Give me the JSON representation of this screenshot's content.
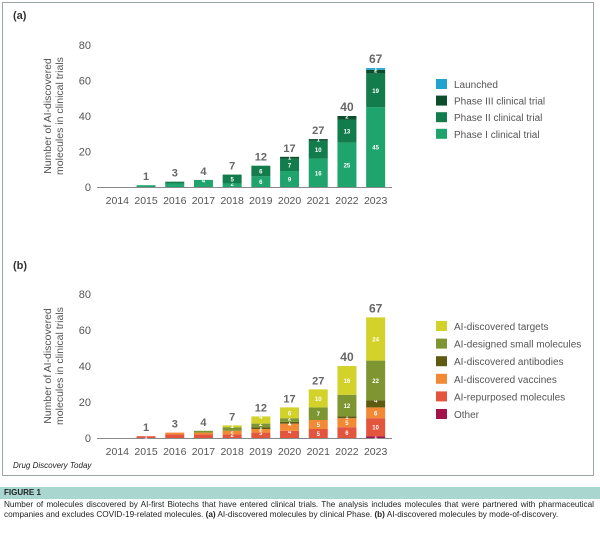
{
  "figure": {
    "label": "FIGURE 1",
    "source": "Drug Discovery Today",
    "caption_parts": [
      {
        "text": "Number of molecules discovered by AI-first Biotechs that have entered clinical trials. The analysis includes molecules that were partnered with pharmaceutical companies and excludes COVID-19-related molecules. ",
        "bold": false
      },
      {
        "text": "(a)",
        "bold": true
      },
      {
        "text": " AI-discovered molecules by clinical Phase. ",
        "bold": false
      },
      {
        "text": "(b)",
        "bold": true
      },
      {
        "text": " AI-discovered molecules by mode-of-discovery.",
        "bold": false
      }
    ]
  },
  "chart_data": [
    {
      "panel": "(a)",
      "type": "bar",
      "stacked": true,
      "ylabel": "Number of AI-discovered molecules in clinical trials",
      "xlabel": "",
      "ylim": [
        0,
        80
      ],
      "yticks": [
        0,
        20,
        40,
        60,
        80
      ],
      "grid": false,
      "legend_position": "right",
      "categories": [
        "2014",
        "2015",
        "2016",
        "2017",
        "2018",
        "2019",
        "2020",
        "2021",
        "2022",
        "2023"
      ],
      "totals": [
        null,
        1,
        3,
        4,
        7,
        12,
        17,
        27,
        40,
        67
      ],
      "series": [
        {
          "name": "Phase I clinical trial",
          "color": "#1fa46e",
          "values": [
            0,
            1,
            2,
            4,
            2,
            6,
            9,
            16,
            25,
            45
          ],
          "labels": [
            "",
            "",
            "",
            "4",
            "2",
            "6",
            "9",
            "16",
            "25",
            "45"
          ]
        },
        {
          "name": "Phase II clinical trial",
          "color": "#137c4c",
          "values": [
            0,
            0,
            1,
            0,
            5,
            6,
            7,
            10,
            13,
            19
          ],
          "labels": [
            "",
            "",
            "",
            "",
            "5",
            "6",
            "7",
            "10",
            "13",
            "19"
          ]
        },
        {
          "name": "Phase III clinical trial",
          "color": "#0b4d2d",
          "values": [
            0,
            0,
            0,
            0,
            0,
            0,
            1,
            1,
            2,
            2
          ],
          "labels": [
            "",
            "",
            "",
            "",
            "",
            "",
            "1",
            "1",
            "2",
            "2"
          ]
        },
        {
          "name": "Launched",
          "color": "#21a2cf",
          "values": [
            0,
            0,
            0,
            0,
            0,
            0,
            0,
            0,
            0,
            1
          ],
          "labels": [
            "",
            "",
            "",
            "",
            "",
            "",
            "",
            "",
            "",
            "1"
          ]
        }
      ]
    },
    {
      "panel": "(b)",
      "type": "bar",
      "stacked": true,
      "ylabel": "Number of AI-discovered molecules in clinical trials",
      "xlabel": "",
      "ylim": [
        0,
        80
      ],
      "yticks": [
        0,
        20,
        40,
        60,
        80
      ],
      "grid": false,
      "legend_position": "right",
      "categories": [
        "2014",
        "2015",
        "2016",
        "2017",
        "2018",
        "2019",
        "2020",
        "2021",
        "2022",
        "2023"
      ],
      "totals": [
        null,
        1,
        3,
        4,
        7,
        12,
        17,
        27,
        40,
        67
      ],
      "series": [
        {
          "name": "Other",
          "color": "#a3124a",
          "values": [
            0,
            0,
            0,
            0,
            0,
            0,
            0,
            0,
            0,
            1
          ],
          "labels": [
            "",
            "",
            "",
            "",
            "",
            "",
            "",
            "",
            "",
            "1"
          ]
        },
        {
          "name": "AI-repurposed molecules",
          "color": "#e4553e",
          "values": [
            0,
            1,
            2,
            2,
            2,
            3,
            4,
            5,
            6,
            10
          ],
          "labels": [
            "",
            "1",
            "",
            "",
            "2",
            "3",
            "4",
            "5",
            "6",
            "10"
          ]
        },
        {
          "name": "AI-discovered vaccines",
          "color": "#f28a35",
          "values": [
            0,
            0,
            1,
            1,
            2,
            2,
            4,
            5,
            5,
            6
          ],
          "labels": [
            "",
            "",
            "",
            "",
            "2",
            "2",
            "4",
            "5",
            "5",
            "6"
          ]
        },
        {
          "name": "AI-discovered antibodies",
          "color": "#5d5a12",
          "values": [
            0,
            0,
            0,
            0,
            0,
            1,
            1,
            0,
            1,
            4
          ],
          "labels": [
            "",
            "",
            "",
            "",
            "",
            "1",
            "1",
            "",
            "1",
            "4"
          ]
        },
        {
          "name": "AI-designed small molecules",
          "color": "#7e9632",
          "values": [
            0,
            0,
            0,
            1,
            2,
            2,
            2,
            7,
            12,
            22
          ],
          "labels": [
            "",
            "",
            "",
            "",
            "",
            "2",
            "2",
            "7",
            "12",
            "22"
          ]
        },
        {
          "name": "AI-discovered targets",
          "color": "#d2d22a",
          "values": [
            0,
            0,
            0,
            0,
            1,
            4,
            6,
            10,
            16,
            24
          ],
          "labels": [
            "",
            "",
            "",
            "",
            "1",
            "4",
            "6",
            "10",
            "16",
            "24"
          ]
        }
      ],
      "legend_order": [
        "AI-discovered targets",
        "AI-designed small molecules",
        "AI-discovered antibodies",
        "AI-discovered vaccines",
        "AI-repurposed molecules",
        "Other"
      ]
    }
  ]
}
